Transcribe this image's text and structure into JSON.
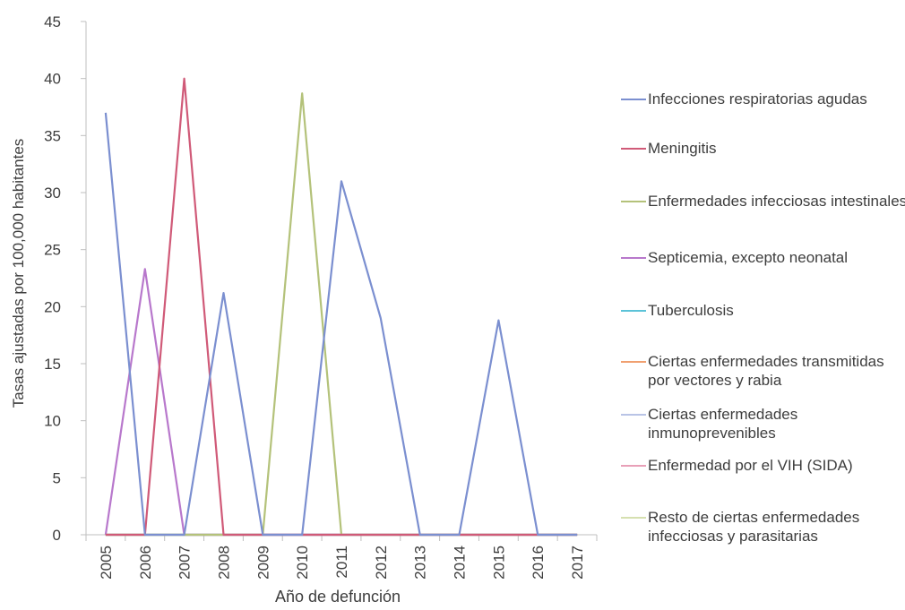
{
  "chart_data": {
    "type": "line",
    "title": "",
    "xlabel": "Año de defunción",
    "ylabel": "Tasas ajustadas por 100,000 habitantes",
    "ylim": [
      0,
      45
    ],
    "yticks": [
      0,
      5,
      10,
      15,
      20,
      25,
      30,
      35,
      40,
      45
    ],
    "grid": false,
    "legend_position": "right",
    "categories": [
      "2005",
      "2006",
      "2007",
      "2008",
      "2009",
      "2010",
      "2011",
      "2012",
      "2013",
      "2014",
      "2015",
      "2016",
      "2017"
    ],
    "series": [
      {
        "name": "Infecciones respiratorias agudas",
        "color": "#7b8fd0",
        "values": [
          37,
          0,
          0,
          21.2,
          0,
          0,
          31,
          19,
          0,
          0,
          18.8,
          0,
          0
        ]
      },
      {
        "name": "Meningitis",
        "color": "#d05a78",
        "values": [
          0,
          0,
          40,
          0,
          0,
          0,
          0,
          0,
          0,
          0,
          0,
          0,
          0
        ]
      },
      {
        "name": "Enfermedades infecciosas intestinales",
        "color": "#b4c27a",
        "values": [
          0,
          0,
          0,
          0,
          0,
          38.7,
          0,
          0,
          0,
          0,
          0,
          0,
          0
        ]
      },
      {
        "name": "Septicemia, excepto neonatal",
        "color": "#b878cc",
        "values": [
          0,
          23.3,
          0,
          0,
          0,
          0,
          0,
          0,
          0,
          0,
          0,
          0,
          0
        ]
      },
      {
        "name": "Tuberculosis",
        "color": "#5cc3d8",
        "values": [
          0,
          0,
          0,
          0,
          0,
          0,
          0,
          0,
          0,
          0,
          0,
          0,
          0
        ]
      },
      {
        "name": "Ciertas enfermedades transmitidas por vectores y rabia",
        "color": "#f0a070",
        "values": [
          0,
          0,
          0,
          0,
          0,
          0,
          0,
          0,
          0,
          0,
          0,
          0,
          0
        ]
      },
      {
        "name": "Ciertas enfermedades inmunoprevenibles",
        "color": "#b9c4e6",
        "values": [
          0,
          0,
          0,
          0,
          0,
          0,
          0,
          0,
          0,
          0,
          0,
          0,
          0
        ]
      },
      {
        "name": "Enfermedad por el VIH (SIDA)",
        "color": "#e8a0b8",
        "values": [
          0,
          0,
          0,
          0,
          0,
          0,
          0,
          0,
          0,
          0,
          0,
          0,
          0
        ]
      },
      {
        "name": "Resto de ciertas enfermedades infecciosas y parasitarias",
        "color": "#d6e0b0",
        "values": [
          0,
          0,
          0,
          0,
          0,
          0,
          0,
          0,
          0,
          0,
          0,
          0,
          0
        ]
      }
    ]
  }
}
